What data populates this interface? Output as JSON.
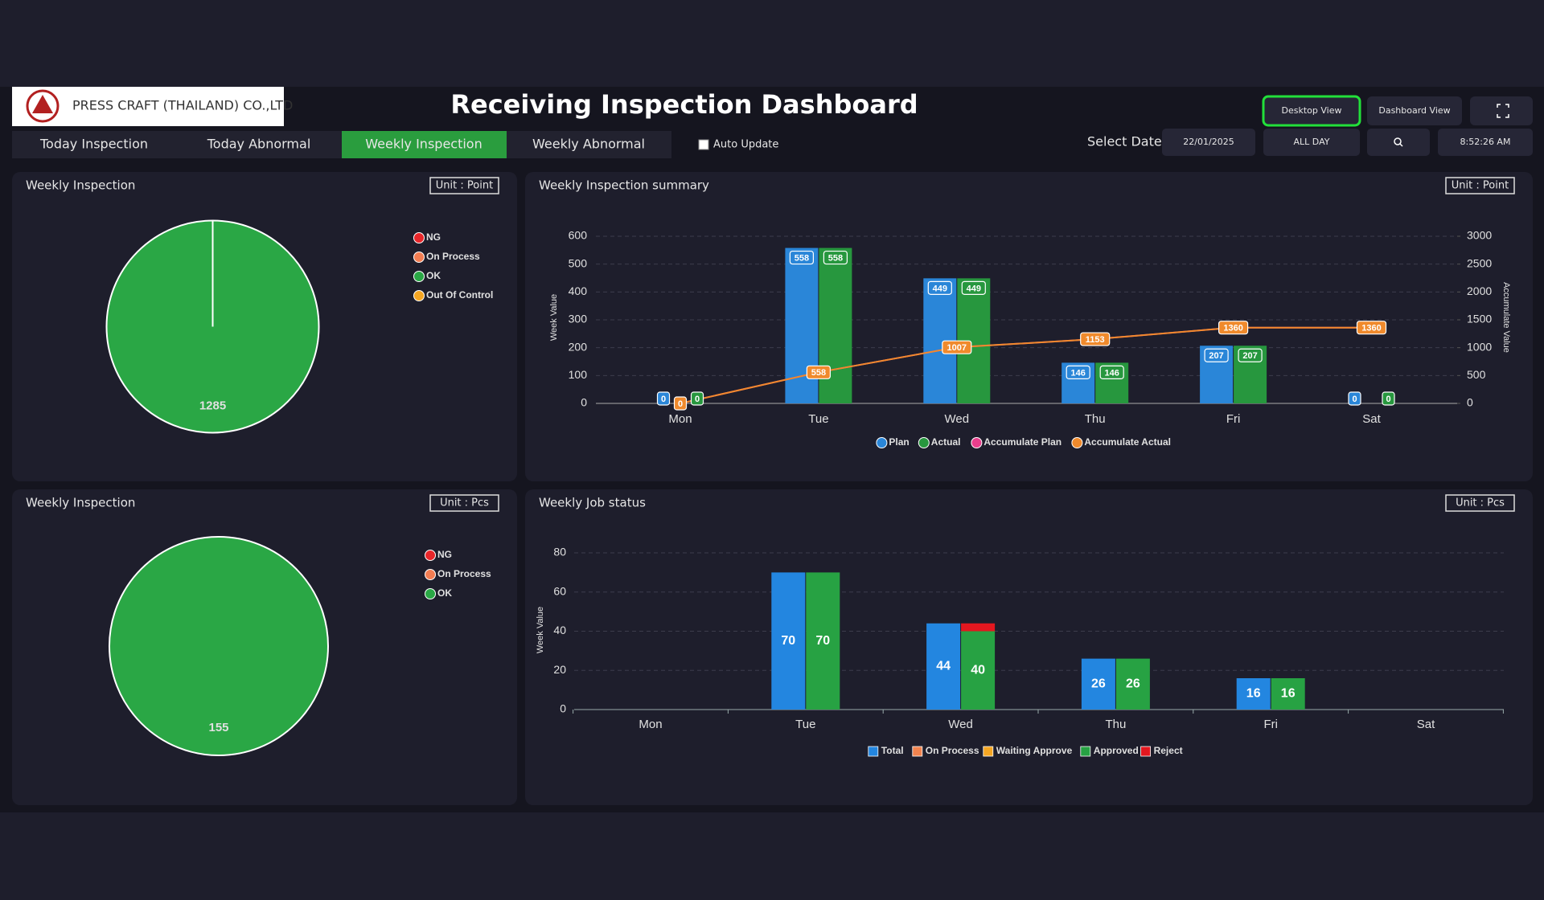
{
  "header": {
    "company": "PRESS CRAFT (THAILAND) CO.,LTD",
    "title": "Receiving Inspection Dashboard",
    "buttons": [
      "Desktop View",
      "Dashboard View"
    ],
    "active_button": 0
  },
  "tabs": [
    "Today Inspection",
    "Today Abnormal",
    "Weekly Inspection",
    "Weekly Abnormal"
  ],
  "active_tab": 2,
  "auto_update": "Auto Update",
  "select_date": {
    "label": "Select Date",
    "date": "22/01/2025",
    "range": "ALL DAY",
    "time": "8:52:26 AM"
  },
  "panels": [
    {
      "type": "pie",
      "title": "Weekly Inspection",
      "unit": "Unit : Point",
      "categories": [
        "NG",
        "On Process",
        "OK",
        "Out Of Control"
      ],
      "colors": [
        "#e8262a",
        "#f27d52",
        "#2aa745",
        "#f5a623"
      ],
      "values": [
        0,
        0,
        1285,
        0
      ]
    },
    {
      "type": "bar",
      "title": "Weekly Inspection summary",
      "unit": "Unit : Point",
      "ylabel": "Week Value",
      "y2label": "Accumulate Value",
      "categories": [
        "Mon",
        "Tue",
        "Wed",
        "Thu",
        "Fri",
        "Sat"
      ],
      "ylim": [
        0,
        600
      ],
      "yticks": [
        0,
        100,
        200,
        300,
        400,
        500,
        600
      ],
      "y2lim": [
        0,
        3000
      ],
      "y2ticks": [
        0,
        500,
        1000,
        1500,
        2000,
        2500,
        3000
      ],
      "grid": true,
      "series": [
        {
          "name": "Plan",
          "color": "#2a86d8",
          "values": [
            0,
            558,
            449,
            146,
            207,
            0
          ]
        },
        {
          "name": "Actual",
          "color": "#27973e",
          "values": [
            0,
            558,
            449,
            146,
            207,
            0
          ]
        },
        {
          "name": "Accumulate Plan",
          "color": "#e83e8c",
          "type": "line",
          "axis": "y2",
          "values": [
            0,
            558,
            1007,
            1153,
            1360,
            1360
          ]
        },
        {
          "name": "Accumulate Actual",
          "color": "#f08a2c",
          "type": "line",
          "axis": "y2",
          "values": [
            0,
            558,
            1007,
            1153,
            1360,
            1360
          ]
        }
      ]
    },
    {
      "type": "pie",
      "title": "Weekly Inspection",
      "unit": "Unit : Pcs",
      "categories": [
        "NG",
        "On Process",
        "OK"
      ],
      "colors": [
        "#e8262a",
        "#f27d52",
        "#2aa745"
      ],
      "values": [
        0,
        0,
        155
      ]
    },
    {
      "type": "stacked_bar",
      "title": "Weekly Job status",
      "unit": "Unit : Pcs",
      "ylabel": "Week Value",
      "categories": [
        "Mon",
        "Tue",
        "Wed",
        "Thu",
        "Fri",
        "Sat"
      ],
      "ylim": [
        0,
        80
      ],
      "yticks": [
        0,
        20,
        40,
        60,
        80
      ],
      "grid": true,
      "series": [
        {
          "name": "Total",
          "color": "#2386e0",
          "values": [
            0,
            70,
            44,
            26,
            16,
            0
          ]
        },
        {
          "name": "On Process",
          "color": "#f2844f",
          "values": [
            0,
            0,
            0,
            0,
            0,
            0
          ]
        },
        {
          "name": "Waiting Approve",
          "color": "#f5a623",
          "values": [
            0,
            0,
            0,
            0,
            0,
            0
          ]
        },
        {
          "name": "Approved",
          "color": "#27a243",
          "values": [
            0,
            70,
            40,
            26,
            16,
            0
          ]
        },
        {
          "name": "Reject",
          "color": "#e3171f",
          "values": [
            0,
            0,
            4,
            0,
            0,
            0
          ]
        }
      ]
    }
  ]
}
